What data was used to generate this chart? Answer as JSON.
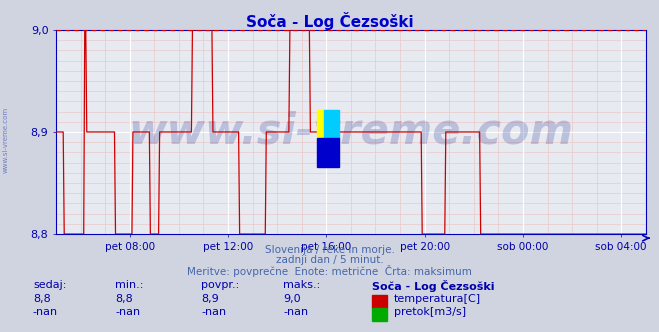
{
  "title": "Soča - Log Čezsoški",
  "title_color": "#0000cc",
  "bg_color": "#d0d4e0",
  "plot_bg_color": "#e8eaf2",
  "grid_major_color": "#ffffff",
  "grid_minor_color": "#e8c8c8",
  "ylim": [
    8.8,
    9.0
  ],
  "yticks": [
    8.8,
    8.9,
    9.0
  ],
  "tick_color": "#0000aa",
  "xtick_labels": [
    "pet 08:00",
    "pet 12:00",
    "pet 16:00",
    "pet 20:00",
    "sob 00:00",
    "sob 04:00"
  ],
  "xtick_fracs": [
    0.125,
    0.292,
    0.458,
    0.625,
    0.792,
    0.958
  ],
  "line_color": "#cc0000",
  "dashed_color": "#cc0000",
  "dashed_value": 9.0,
  "watermark_text": "www.si-vreme.com",
  "watermark_color": "#1a2a8a",
  "watermark_alpha": 0.22,
  "watermark_fontsize": 30,
  "sidebar_text": "www.si-vreme.com",
  "sidebar_color": "#3344aa",
  "subtitle1": "Slovenija / reke in morje.",
  "subtitle2": "zadnji dan / 5 minut.",
  "subtitle3": "Meritve: povprečne  Enote: metrične  Črta: maksimum",
  "subtitle_color": "#4466aa",
  "table_header": [
    "sedaj:",
    "min.:",
    "povpr.:",
    "maks.:",
    "Soča - Log Čezsoški"
  ],
  "table_row1": [
    "8,8",
    "8,8",
    "8,9",
    "9,0",
    "temperatura[C]"
  ],
  "table_row2": [
    "-nan",
    "-nan",
    "-nan",
    "-nan",
    "pretok[m3/s]"
  ],
  "table_color": "#0000aa",
  "legend_temp_color": "#cc0000",
  "legend_flow_color": "#00aa00",
  "n_points": 576,
  "temp_segments": [
    {
      "s": 0.0,
      "e": 0.013,
      "v": 8.9
    },
    {
      "s": 0.013,
      "e": 0.026,
      "v": 8.8
    },
    {
      "s": 0.026,
      "e": 0.048,
      "v": 8.8
    },
    {
      "s": 0.048,
      "e": 0.052,
      "v": 9.0
    },
    {
      "s": 0.052,
      "e": 0.1,
      "v": 8.9
    },
    {
      "s": 0.1,
      "e": 0.115,
      "v": 8.8
    },
    {
      "s": 0.115,
      "e": 0.13,
      "v": 8.8
    },
    {
      "s": 0.13,
      "e": 0.16,
      "v": 8.9
    },
    {
      "s": 0.16,
      "e": 0.175,
      "v": 8.8
    },
    {
      "s": 0.175,
      "e": 0.23,
      "v": 8.9
    },
    {
      "s": 0.23,
      "e": 0.265,
      "v": 9.0
    },
    {
      "s": 0.265,
      "e": 0.31,
      "v": 8.9
    },
    {
      "s": 0.31,
      "e": 0.33,
      "v": 8.8
    },
    {
      "s": 0.33,
      "e": 0.355,
      "v": 8.8
    },
    {
      "s": 0.355,
      "e": 0.395,
      "v": 8.9
    },
    {
      "s": 0.395,
      "e": 0.43,
      "v": 9.0
    },
    {
      "s": 0.43,
      "e": 0.49,
      "v": 8.9
    },
    {
      "s": 0.49,
      "e": 0.62,
      "v": 8.9
    },
    {
      "s": 0.62,
      "e": 0.64,
      "v": 8.8
    },
    {
      "s": 0.64,
      "e": 0.66,
      "v": 8.8
    },
    {
      "s": 0.66,
      "e": 0.72,
      "v": 8.9
    },
    {
      "s": 0.72,
      "e": 0.74,
      "v": 8.8
    },
    {
      "s": 0.74,
      "e": 1.0,
      "v": 8.8
    }
  ],
  "logo_yellow": [
    0.443,
    0.47,
    0.028,
    0.14
  ],
  "logo_cyan": [
    0.455,
    0.47,
    0.025,
    0.14
  ],
  "logo_blue": [
    0.443,
    0.33,
    0.037,
    0.14
  ]
}
